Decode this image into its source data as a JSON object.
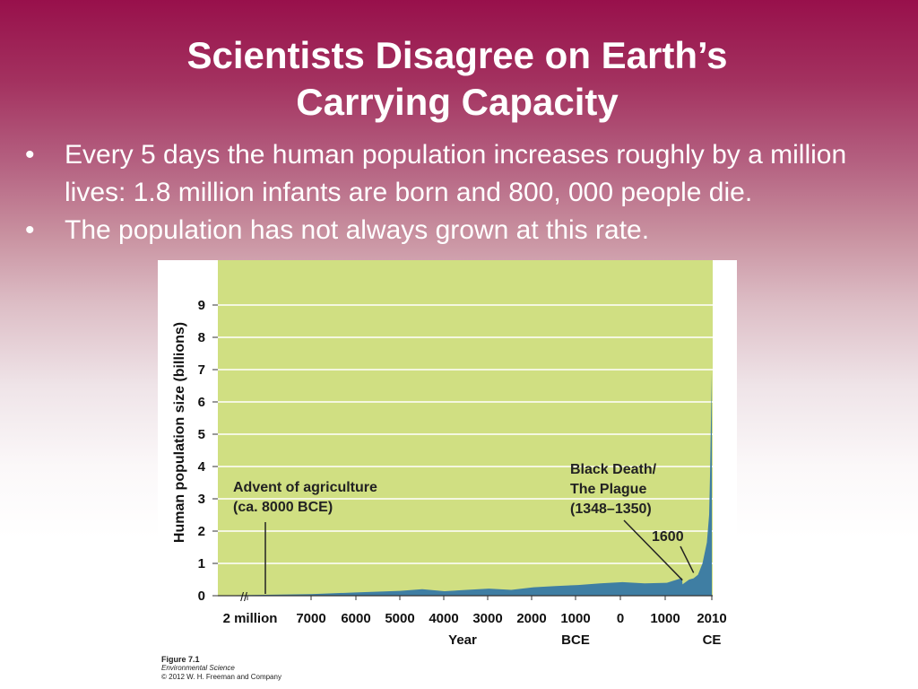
{
  "slide": {
    "title_line1": "Scientists Disagree on Earth’s",
    "title_line2": "Carrying Capacity",
    "bullets": [
      {
        "marker": "•",
        "text": "Every 5 days the human population increases roughly by a million lives: 1.8 million infants are born and 800, 000 people die."
      },
      {
        "marker": "•",
        "text": "The population has not always grown at this rate."
      }
    ],
    "side_label": "Figure",
    "side_number": "7. 1"
  },
  "figure": {
    "caption_title": "Figure 7.1",
    "caption_book": "Environmental Science",
    "caption_copyright": "© 2012 W. H. Freeman and Company"
  },
  "chart_data": {
    "type": "area",
    "ylabel": "Human population size (billions)",
    "xlabel": "Year",
    "ylim": [
      0,
      9
    ],
    "y_ticks": [
      "0",
      "1",
      "2",
      "3",
      "4",
      "5",
      "6",
      "7",
      "8",
      "9"
    ],
    "x_ticks": [
      "2 million",
      "7000",
      "6000",
      "5000",
      "4000",
      "3000",
      "2000",
      "1000",
      "0",
      "1000",
      "2010"
    ],
    "x_sublabels": {
      "1000_bce": "BCE",
      "2010_ce": "CE"
    },
    "grid": true,
    "colors": {
      "plot_bg": "#d0df82",
      "area": "#3f7ea3",
      "gridline": "#ffffff"
    },
    "series": [
      {
        "x": [
          -2000000,
          -8000,
          -7000,
          -6000,
          -5000,
          -4500,
          -4000,
          -3500,
          -3000,
          -2500,
          -2000,
          -1500,
          -1000,
          -500,
          0,
          500,
          1000,
          1340,
          1350,
          1400,
          1500,
          1600,
          1700,
          1800,
          1900,
          1950,
          1970,
          1990,
          2000,
          2010
        ],
        "y": [
          0.0,
          0.005,
          0.05,
          0.1,
          0.15,
          0.2,
          0.14,
          0.18,
          0.22,
          0.18,
          0.26,
          0.3,
          0.33,
          0.38,
          0.42,
          0.38,
          0.4,
          0.55,
          0.35,
          0.4,
          0.5,
          0.54,
          0.65,
          1.0,
          1.65,
          2.5,
          3.7,
          5.3,
          6.1,
          6.9
        ]
      }
    ],
    "annotations": [
      {
        "lines": [
          "Advent of agriculture",
          "(ca. 8000 BCE)"
        ],
        "points_to_year": -8000
      },
      {
        "lines": [
          "Black Death/",
          "The Plague",
          "(1348–1350)"
        ],
        "points_to_year": 1350
      },
      {
        "lines": [
          "1600"
        ],
        "points_to_year": 1600
      }
    ]
  }
}
